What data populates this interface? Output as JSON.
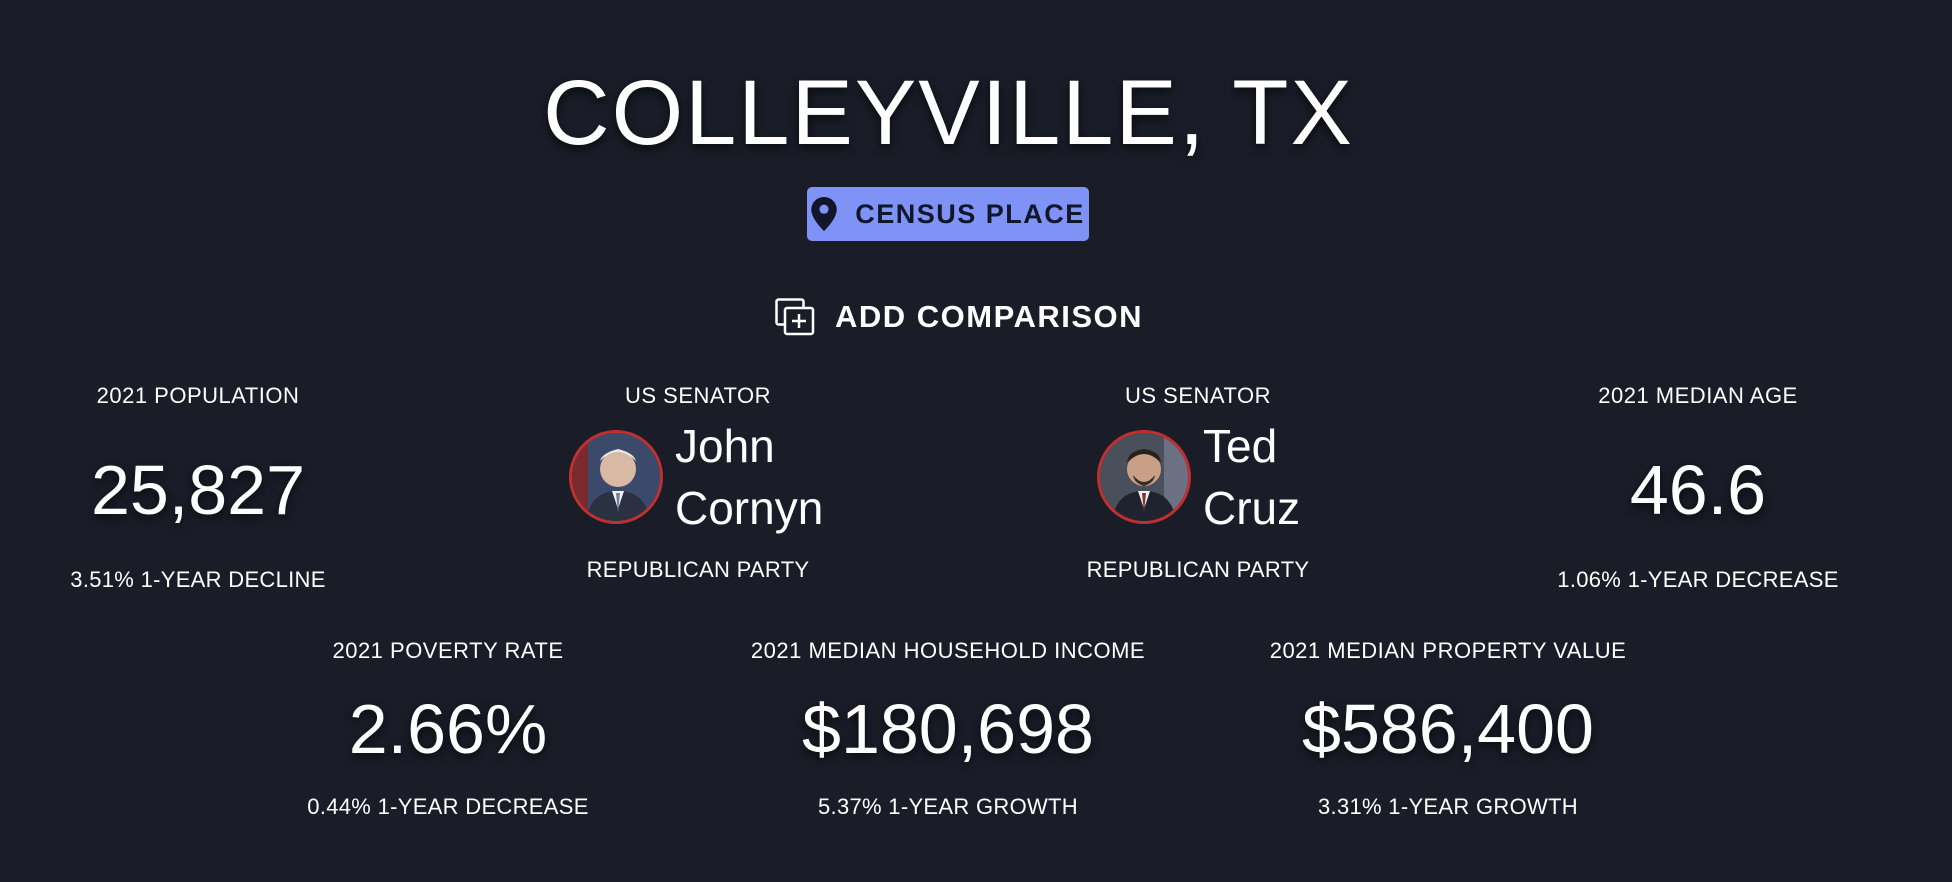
{
  "header": {
    "title": "COLLEYVILLE, TX",
    "badge_label": "CENSUS PLACE",
    "badge_icon": "map-pin-icon",
    "badge_color": "#7e93f5"
  },
  "compare": {
    "label": "ADD COMPARISON",
    "icon": "add-comparison-icon"
  },
  "stats": {
    "population": {
      "label": "2021 POPULATION",
      "value": "25,827",
      "change": "3.51% 1-YEAR DECLINE"
    },
    "median_age": {
      "label": "2021 MEDIAN AGE",
      "value": "46.6",
      "change": "1.06% 1-YEAR DECREASE"
    },
    "poverty_rate": {
      "label": "2021 POVERTY RATE",
      "value": "2.66%",
      "change": "0.44% 1-YEAR DECREASE"
    },
    "household_income": {
      "label": "2021 MEDIAN HOUSEHOLD INCOME",
      "value": "$180,698",
      "change": "5.37% 1-YEAR GROWTH"
    },
    "property_value": {
      "label": "2021 MEDIAN PROPERTY VALUE",
      "value": "$586,400",
      "change": "3.31% 1-YEAR GROWTH"
    }
  },
  "senators": [
    {
      "label": "US SENATOR",
      "first_name": "John",
      "last_name": "Cornyn",
      "party": "REPUBLICAN PARTY",
      "border_color": "#c0302f"
    },
    {
      "label": "US SENATOR",
      "first_name": "Ted",
      "last_name": "Cruz",
      "party": "REPUBLICAN PARTY",
      "border_color": "#c0302f"
    }
  ]
}
